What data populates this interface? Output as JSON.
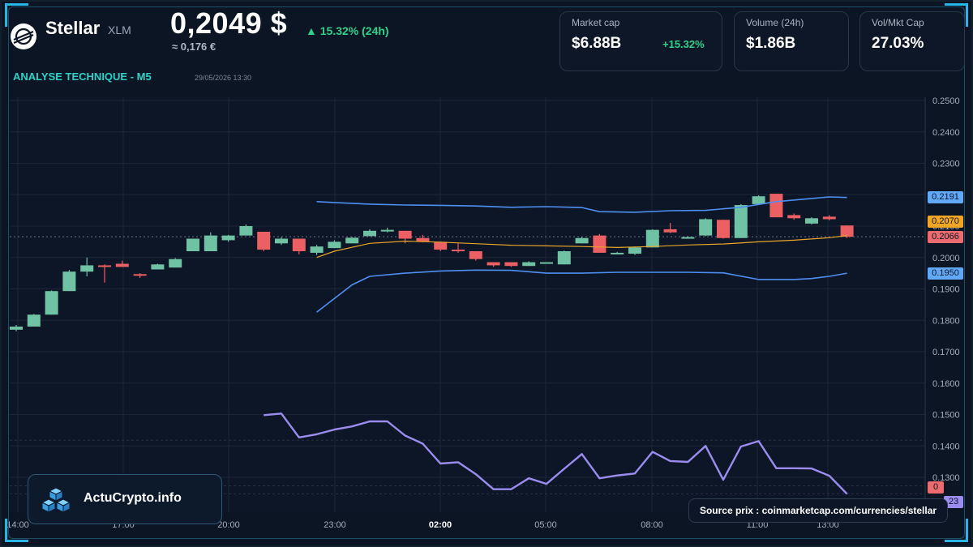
{
  "header": {
    "coin_name": "Stellar",
    "ticker": "XLM",
    "price": "0,2049 $",
    "change_24h": "▲ 15.32% (24h)",
    "price_eur": "≈ 0,176 €",
    "section_title": "ANALYSE TECHNIQUE - M5",
    "timestamp": "29/05/2026 13:30"
  },
  "stats": {
    "market_cap": {
      "label": "Market cap",
      "value": "$6.88B",
      "change": "+15.32%"
    },
    "volume": {
      "label": "Volume (24h)",
      "value": "$1.86B"
    },
    "vol_mkt_cap": {
      "label": "Vol/Mkt Cap",
      "value": "27.03%"
    }
  },
  "price_tags": {
    "bb_upper": "0.2191",
    "bb_middle": "0.2070",
    "last_close": "0.2066",
    "bb_lower": "0.1950",
    "rsi_a": "0",
    "rsi_b": "23"
  },
  "branding": {
    "site": "ActuCrypto.info",
    "source": "Source prix : coinmarketcap.com/currencies/stellar"
  },
  "colors": {
    "up": "#6fc2a4",
    "down": "#ec5f63",
    "bollinger": "#4e8ff2",
    "ma": "#e8a52a",
    "rsi": "#9b8df0",
    "accent": "#2dd3c9",
    "positive": "#2fd08a"
  },
  "chart_data": {
    "type": "candlestick",
    "x_tick_labels": [
      "14:00",
      "17:00",
      "20:00",
      "23:00",
      "02:00",
      "05:00",
      "08:00",
      "11:00",
      "13:00"
    ],
    "y_tick_labels": [
      "0.2500",
      "0.2400",
      "0.2300",
      "0.2200",
      "0.2100",
      "0.2000",
      "0.1900",
      "0.1800",
      "0.1700",
      "0.1600",
      "0.1500",
      "0.1400",
      "0.1300"
    ],
    "ylim": [
      0.125,
      0.251
    ],
    "ohlc": [
      [
        0.177,
        0.1785,
        0.1765,
        0.178
      ],
      [
        0.178,
        0.182,
        0.178,
        0.1818
      ],
      [
        0.1818,
        0.1895,
        0.1818,
        0.1893
      ],
      [
        0.1893,
        0.196,
        0.1893,
        0.1955
      ],
      [
        0.1955,
        0.2,
        0.194,
        0.1975
      ],
      [
        0.1975,
        0.1978,
        0.192,
        0.1973
      ],
      [
        0.198,
        0.199,
        0.197,
        0.197
      ],
      [
        0.1947,
        0.195,
        0.1935,
        0.1945
      ],
      [
        0.1962,
        0.198,
        0.1962,
        0.1978
      ],
      [
        0.1968,
        0.1998,
        0.1968,
        0.1995
      ],
      [
        0.202,
        0.206,
        0.202,
        0.206
      ],
      [
        0.202,
        0.208,
        0.202,
        0.207
      ],
      [
        0.2055,
        0.2072,
        0.205,
        0.207
      ],
      [
        0.207,
        0.2105,
        0.207,
        0.21
      ],
      [
        0.2082,
        0.2082,
        0.202,
        0.2025
      ],
      [
        0.2045,
        0.2065,
        0.204,
        0.206
      ],
      [
        0.206,
        0.206,
        0.201,
        0.202
      ],
      [
        0.2015,
        0.204,
        0.2008,
        0.2035
      ],
      [
        0.203,
        0.2055,
        0.203,
        0.205
      ],
      [
        0.2045,
        0.2065,
        0.2045,
        0.2063
      ],
      [
        0.2068,
        0.209,
        0.2068,
        0.2085
      ],
      [
        0.2085,
        0.2095,
        0.208,
        0.2088
      ],
      [
        0.2085,
        0.2085,
        0.2045,
        0.206
      ],
      [
        0.2062,
        0.2072,
        0.2048,
        0.205
      ],
      [
        0.205,
        0.205,
        0.202,
        0.2025
      ],
      [
        0.2025,
        0.2045,
        0.2015,
        0.2022
      ],
      [
        0.202,
        0.202,
        0.199,
        0.1995
      ],
      [
        0.1985,
        0.1985,
        0.197,
        0.1975
      ],
      [
        0.1985,
        0.1985,
        0.197,
        0.1973
      ],
      [
        0.1973,
        0.1988,
        0.1973,
        0.1985
      ],
      [
        0.1985,
        0.1985,
        0.1985,
        0.1985
      ],
      [
        0.1978,
        0.2022,
        0.1978,
        0.202
      ],
      [
        0.2045,
        0.2065,
        0.2045,
        0.2062
      ],
      [
        0.207,
        0.2075,
        0.2015,
        0.2015
      ],
      [
        0.2015,
        0.2018,
        0.2012,
        0.2015
      ],
      [
        0.2012,
        0.2035,
        0.2008,
        0.2032
      ],
      [
        0.2032,
        0.209,
        0.2032,
        0.2088
      ],
      [
        0.209,
        0.211,
        0.2078,
        0.208
      ],
      [
        0.2065,
        0.2068,
        0.2062,
        0.2065
      ],
      [
        0.207,
        0.2125,
        0.2068,
        0.2122
      ],
      [
        0.212,
        0.212,
        0.206,
        0.2062
      ],
      [
        0.2062,
        0.217,
        0.2062,
        0.2167
      ],
      [
        0.217,
        0.2198,
        0.217,
        0.2195
      ],
      [
        0.2203,
        0.2203,
        0.2128,
        0.2128
      ],
      [
        0.2135,
        0.214,
        0.212,
        0.2125
      ],
      [
        0.2108,
        0.2128,
        0.2105,
        0.2125
      ],
      [
        0.213,
        0.2135,
        0.2118,
        0.2122
      ],
      [
        0.2102,
        0.2102,
        0.2062,
        0.2066
      ]
    ],
    "bollinger_upper": [
      [
        17,
        0.2178
      ],
      [
        18,
        0.2175
      ],
      [
        20,
        0.217
      ],
      [
        22,
        0.2167
      ],
      [
        24,
        0.2166
      ],
      [
        26,
        0.2164
      ],
      [
        28,
        0.216
      ],
      [
        30,
        0.2162
      ],
      [
        32,
        0.2159
      ],
      [
        33,
        0.2146
      ],
      [
        35,
        0.2144
      ],
      [
        37,
        0.2149
      ],
      [
        39,
        0.215
      ],
      [
        41,
        0.216
      ],
      [
        43,
        0.2178
      ],
      [
        45,
        0.2188
      ],
      [
        46,
        0.2193
      ],
      [
        47,
        0.2191
      ]
    ],
    "bollinger_middle": [
      [
        17,
        0.2
      ],
      [
        18,
        0.202
      ],
      [
        20,
        0.2045
      ],
      [
        22,
        0.2052
      ],
      [
        24,
        0.2049
      ],
      [
        26,
        0.2044
      ],
      [
        28,
        0.2039
      ],
      [
        30,
        0.2037
      ],
      [
        32,
        0.2035
      ],
      [
        34,
        0.2032
      ],
      [
        36,
        0.2035
      ],
      [
        38,
        0.204
      ],
      [
        40,
        0.2043
      ],
      [
        42,
        0.205
      ],
      [
        44,
        0.2055
      ],
      [
        46,
        0.2063
      ],
      [
        47,
        0.207
      ]
    ],
    "bollinger_lower": [
      [
        17,
        0.1826
      ],
      [
        19,
        0.1913
      ],
      [
        20,
        0.194
      ],
      [
        22,
        0.195
      ],
      [
        24,
        0.1957
      ],
      [
        26,
        0.196
      ],
      [
        28,
        0.1959
      ],
      [
        30,
        0.195
      ],
      [
        32,
        0.195
      ],
      [
        34,
        0.1953
      ],
      [
        36,
        0.1953
      ],
      [
        38,
        0.1953
      ],
      [
        40,
        0.1951
      ],
      [
        42,
        0.193
      ],
      [
        44,
        0.193
      ],
      [
        45,
        0.1933
      ],
      [
        46,
        0.194
      ],
      [
        47,
        0.195
      ]
    ],
    "rsi_line": [
      [
        14,
        0.1498
      ],
      [
        15,
        0.1503
      ],
      [
        16,
        0.1427
      ],
      [
        17,
        0.1437
      ],
      [
        18,
        0.1452
      ],
      [
        19,
        0.1462
      ],
      [
        20,
        0.1478
      ],
      [
        21,
        0.1478
      ],
      [
        22,
        0.1433
      ],
      [
        23,
        0.1407
      ],
      [
        24,
        0.1344
      ],
      [
        25,
        0.1348
      ],
      [
        26,
        0.131
      ],
      [
        27,
        0.1262
      ],
      [
        28,
        0.1262
      ],
      [
        29,
        0.1297
      ],
      [
        30,
        0.1279
      ],
      [
        31,
        0.1327
      ],
      [
        32,
        0.1374
      ],
      [
        33,
        0.1297
      ],
      [
        34,
        0.1306
      ],
      [
        35,
        0.1312
      ],
      [
        36,
        0.1381
      ],
      [
        37,
        0.1352
      ],
      [
        38,
        0.1349
      ],
      [
        39,
        0.14
      ],
      [
        40,
        0.1292
      ],
      [
        41,
        0.1398
      ],
      [
        42,
        0.1415
      ],
      [
        43,
        0.1329
      ],
      [
        44,
        0.1329
      ],
      [
        45,
        0.1328
      ],
      [
        46,
        0.1305
      ],
      [
        47,
        0.1247
      ]
    ],
    "current_price_line": 0.2066,
    "grid": true
  }
}
